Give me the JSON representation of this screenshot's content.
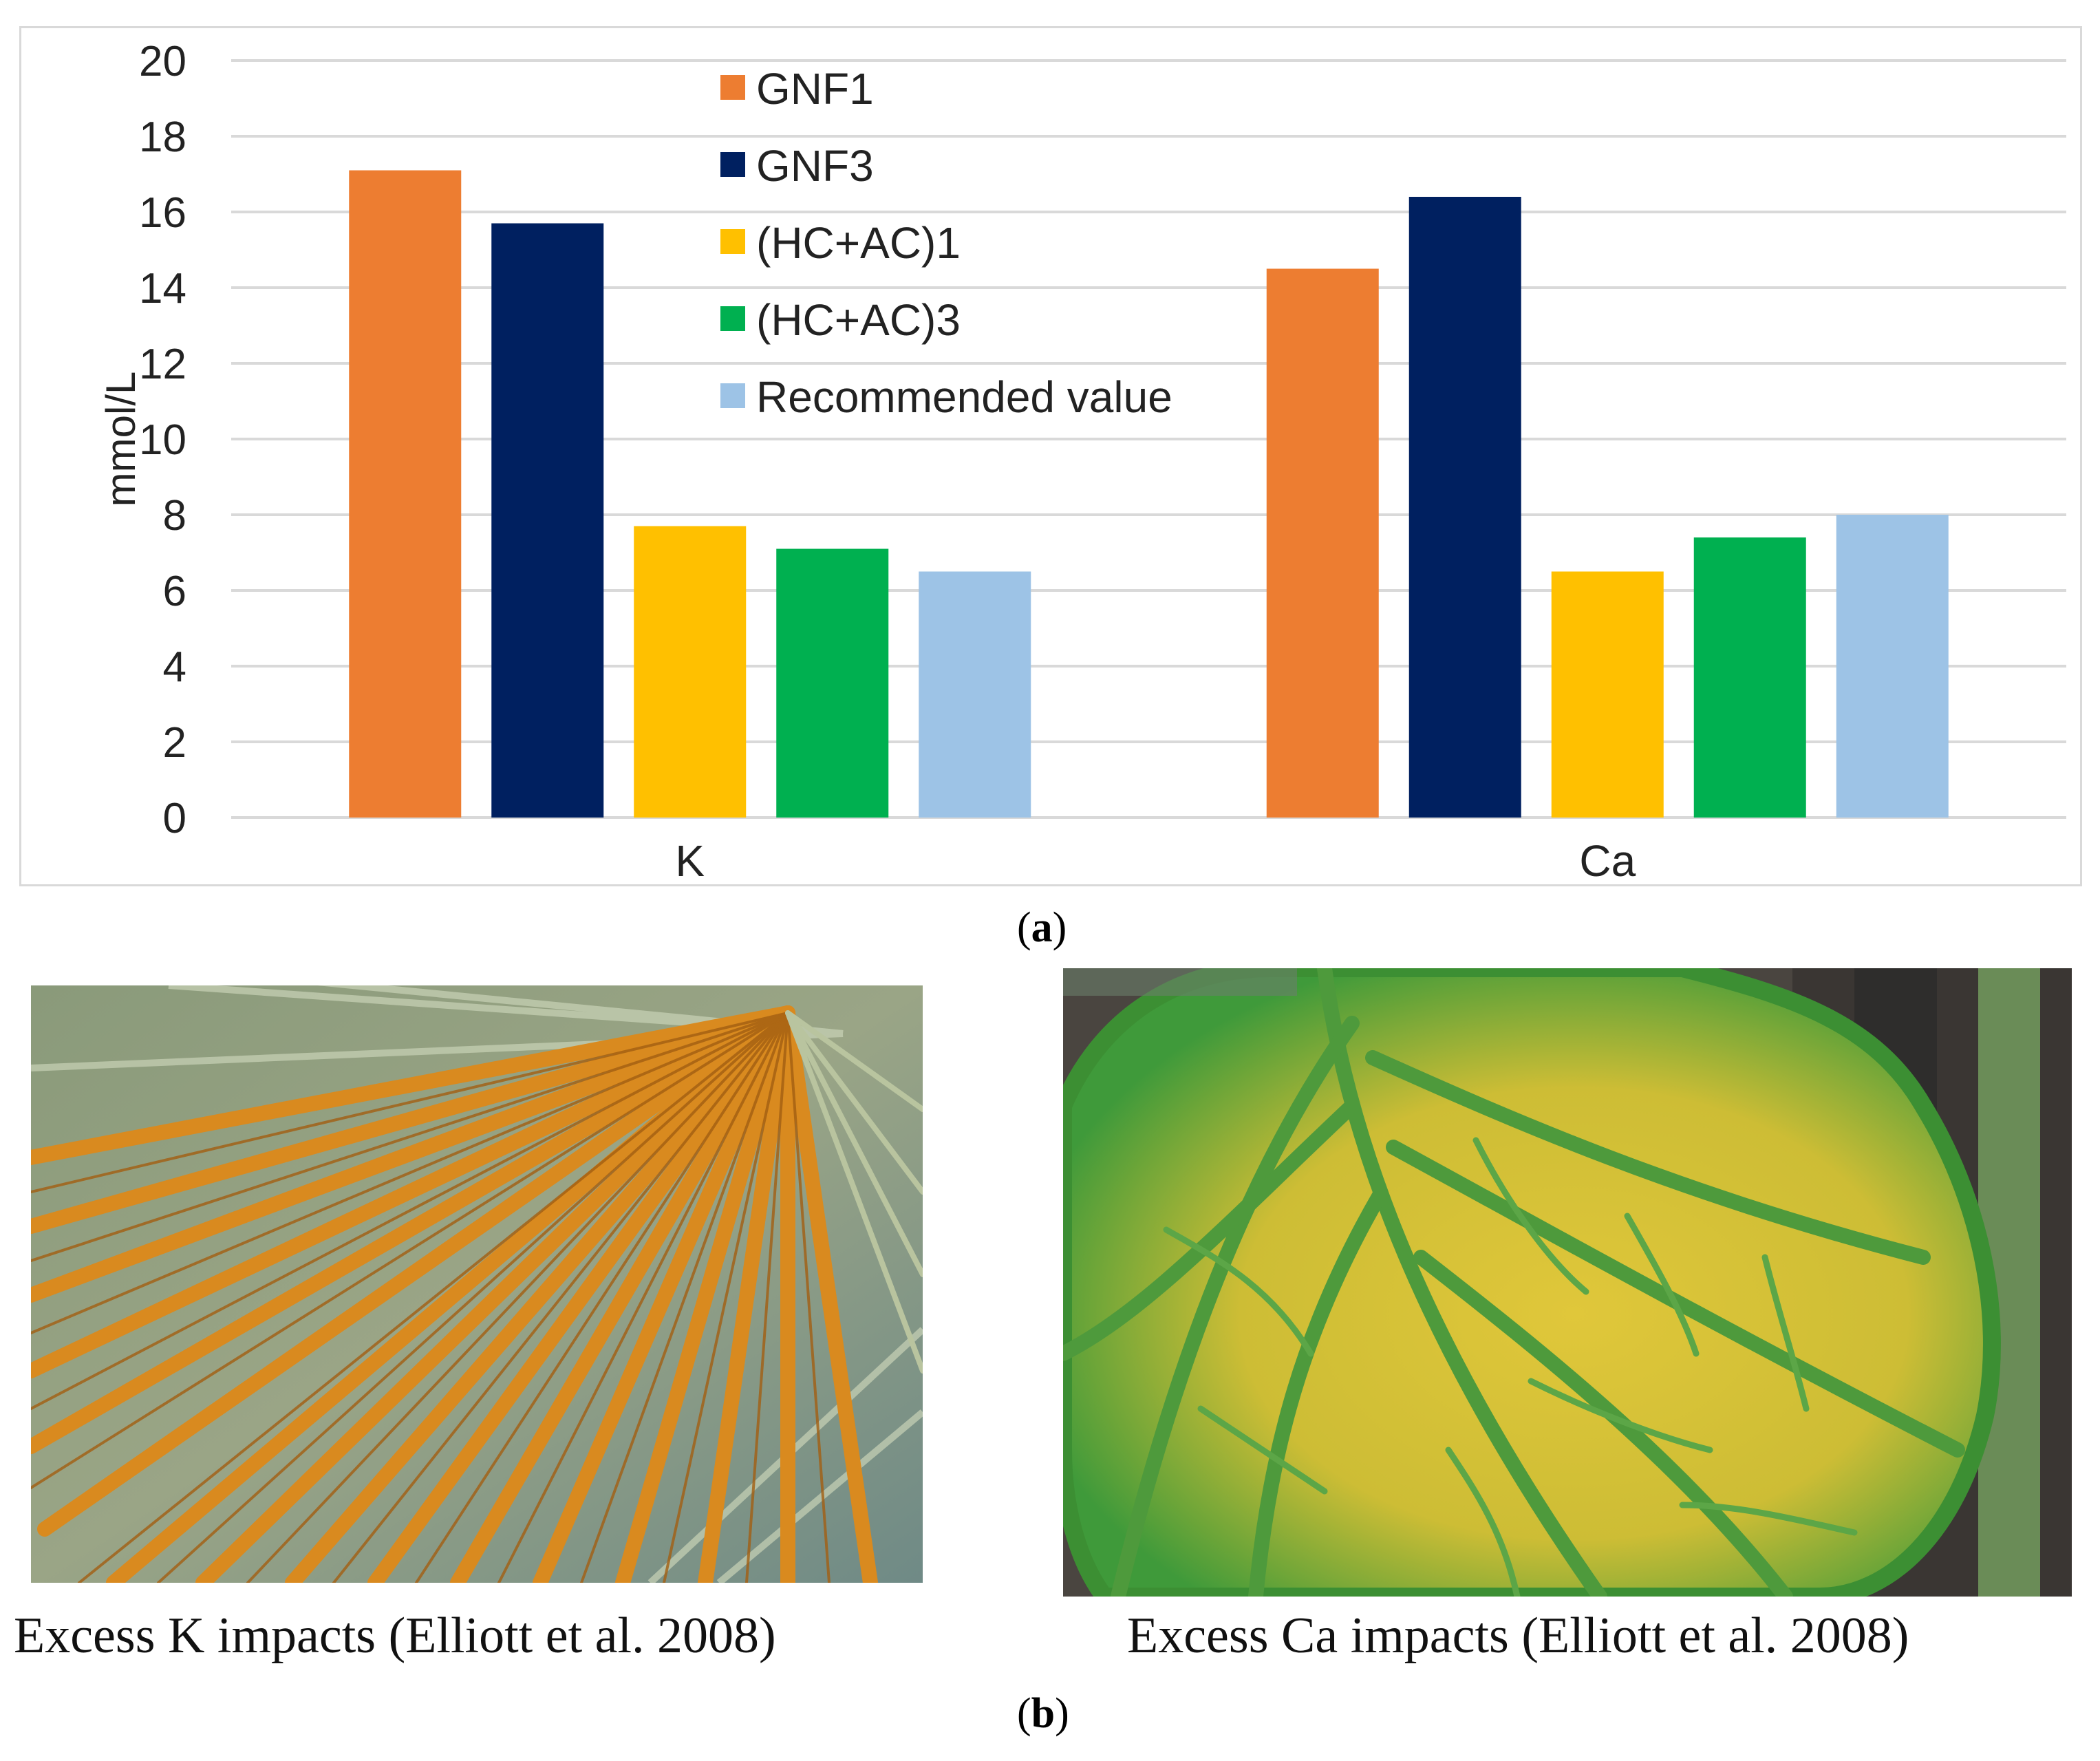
{
  "chart_data": {
    "type": "bar",
    "title": "",
    "xlabel": "",
    "ylabel": "mmol/L",
    "ylim": [
      0,
      20
    ],
    "yticks": [
      "0",
      "2",
      "4",
      "6",
      "8",
      "10",
      "12",
      "14",
      "16",
      "18",
      "20"
    ],
    "grid": true,
    "legend_position": "top-center",
    "categories": [
      "K",
      "Ca"
    ],
    "series": [
      {
        "name": "GNF1",
        "color": "#ED7D31",
        "values": [
          17.1,
          14.5
        ]
      },
      {
        "name": "GNF3",
        "color": "#002060",
        "values": [
          15.7,
          16.4
        ]
      },
      {
        "name": "(HC+AC)1",
        "color": "#FFC000",
        "values": [
          7.7,
          6.5
        ]
      },
      {
        "name": "(HC+AC)3",
        "color": "#00B050",
        "values": [
          7.1,
          7.4
        ]
      },
      {
        "name": "Recommended value",
        "color": "#9DC3E6",
        "values": [
          6.5,
          8.0
        ]
      }
    ]
  },
  "labels": {
    "a_open": "(",
    "a_letter": "a",
    "a_close": ")",
    "b_open": "(",
    "b_letter": "b",
    "b_close": ")"
  },
  "photos": {
    "left_caption": "Excess K impacts (Elliott et al. 2008)",
    "right_caption": "Excess Ca impacts (Elliott et al. 2008)"
  }
}
